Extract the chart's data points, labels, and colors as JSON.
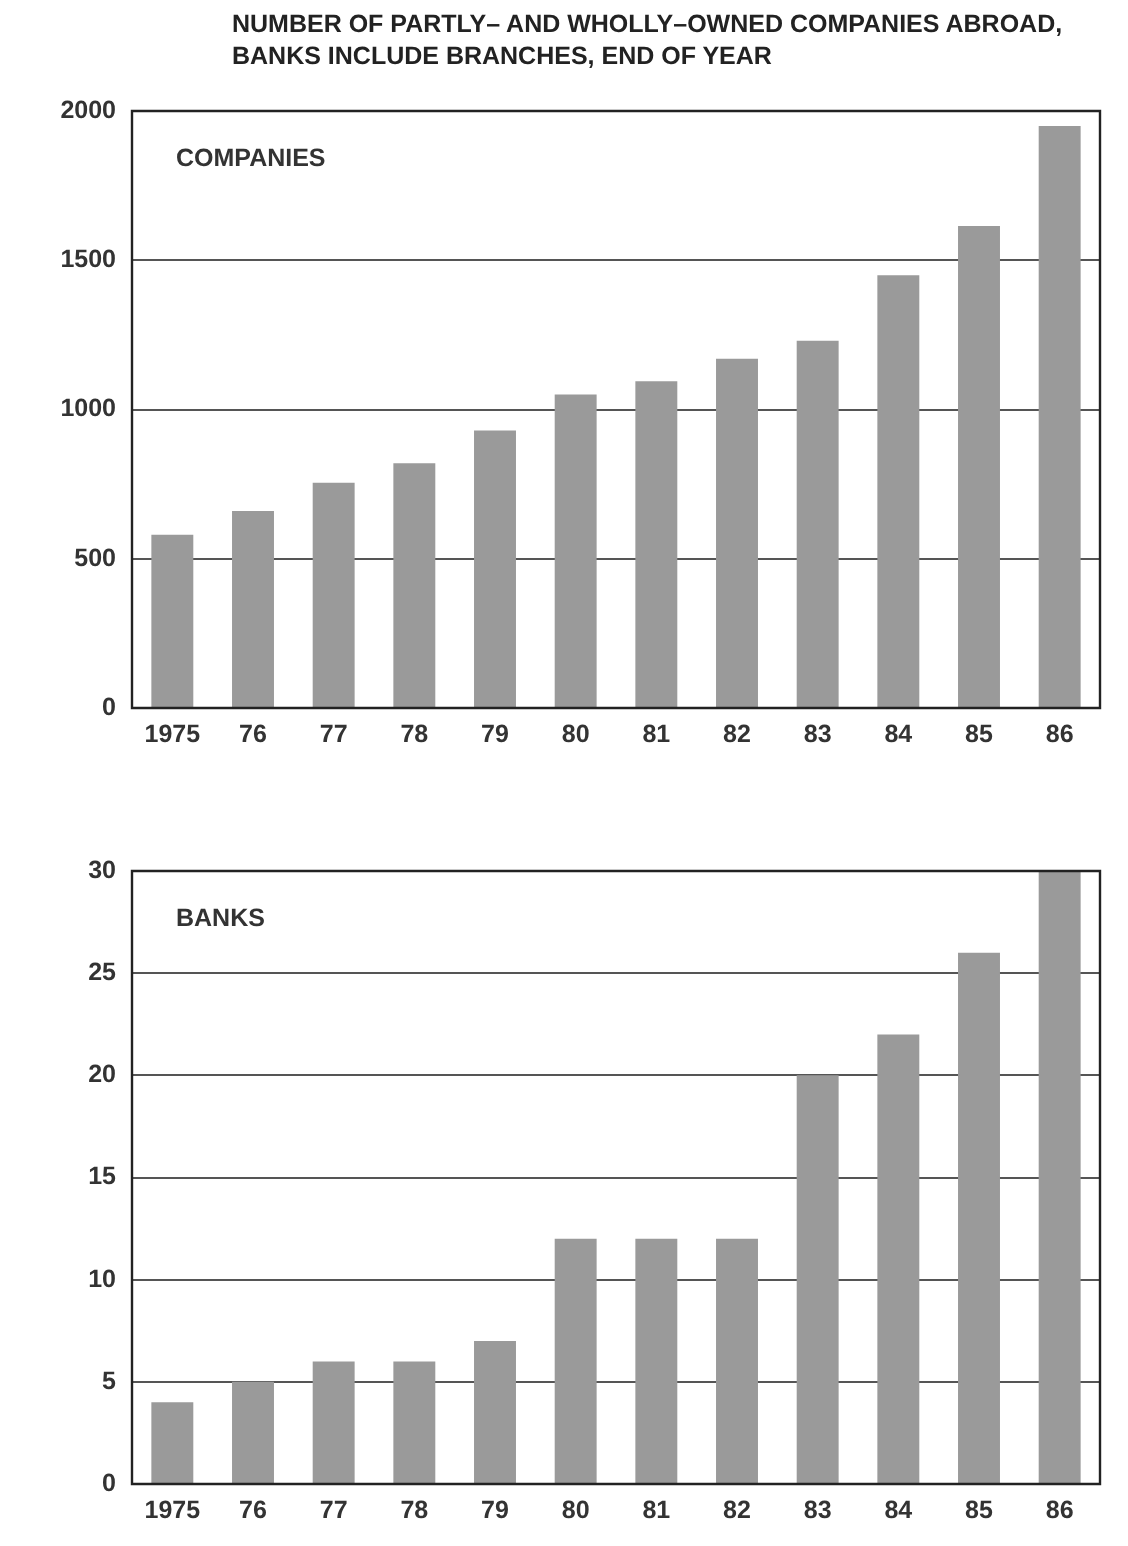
{
  "chart_data": [
    {
      "type": "bar",
      "title": "NUMBER OF PARTLY– AND WHOLLY–OWNED COMPANIES ABROAD, BANKS INCLUDE BRANCHES, END OF YEAR",
      "annotations": [
        "COMPANIES"
      ],
      "categories": [
        "1975",
        "76",
        "77",
        "78",
        "79",
        "80",
        "81",
        "82",
        "83",
        "84",
        "85",
        "86"
      ],
      "values": [
        580,
        660,
        755,
        820,
        930,
        1050,
        1095,
        1170,
        1230,
        1450,
        1615,
        1950
      ],
      "color": "#9a9a9a",
      "ylim": [
        0,
        2000
      ],
      "yticks": [
        0,
        500,
        1000,
        1500,
        2000
      ],
      "grid": "y",
      "legend": false
    },
    {
      "type": "bar",
      "annotations": [
        "BANKS"
      ],
      "categories": [
        "1975",
        "76",
        "77",
        "78",
        "79",
        "80",
        "81",
        "82",
        "83",
        "84",
        "85",
        "86"
      ],
      "values": [
        4,
        5,
        6,
        6,
        7,
        12,
        12,
        12,
        20,
        22,
        26,
        30
      ],
      "color": "#9a9a9a",
      "ylim": [
        0,
        30
      ],
      "yticks": [
        0,
        5,
        10,
        15,
        20,
        25,
        30
      ],
      "grid": "y",
      "legend": false
    }
  ]
}
